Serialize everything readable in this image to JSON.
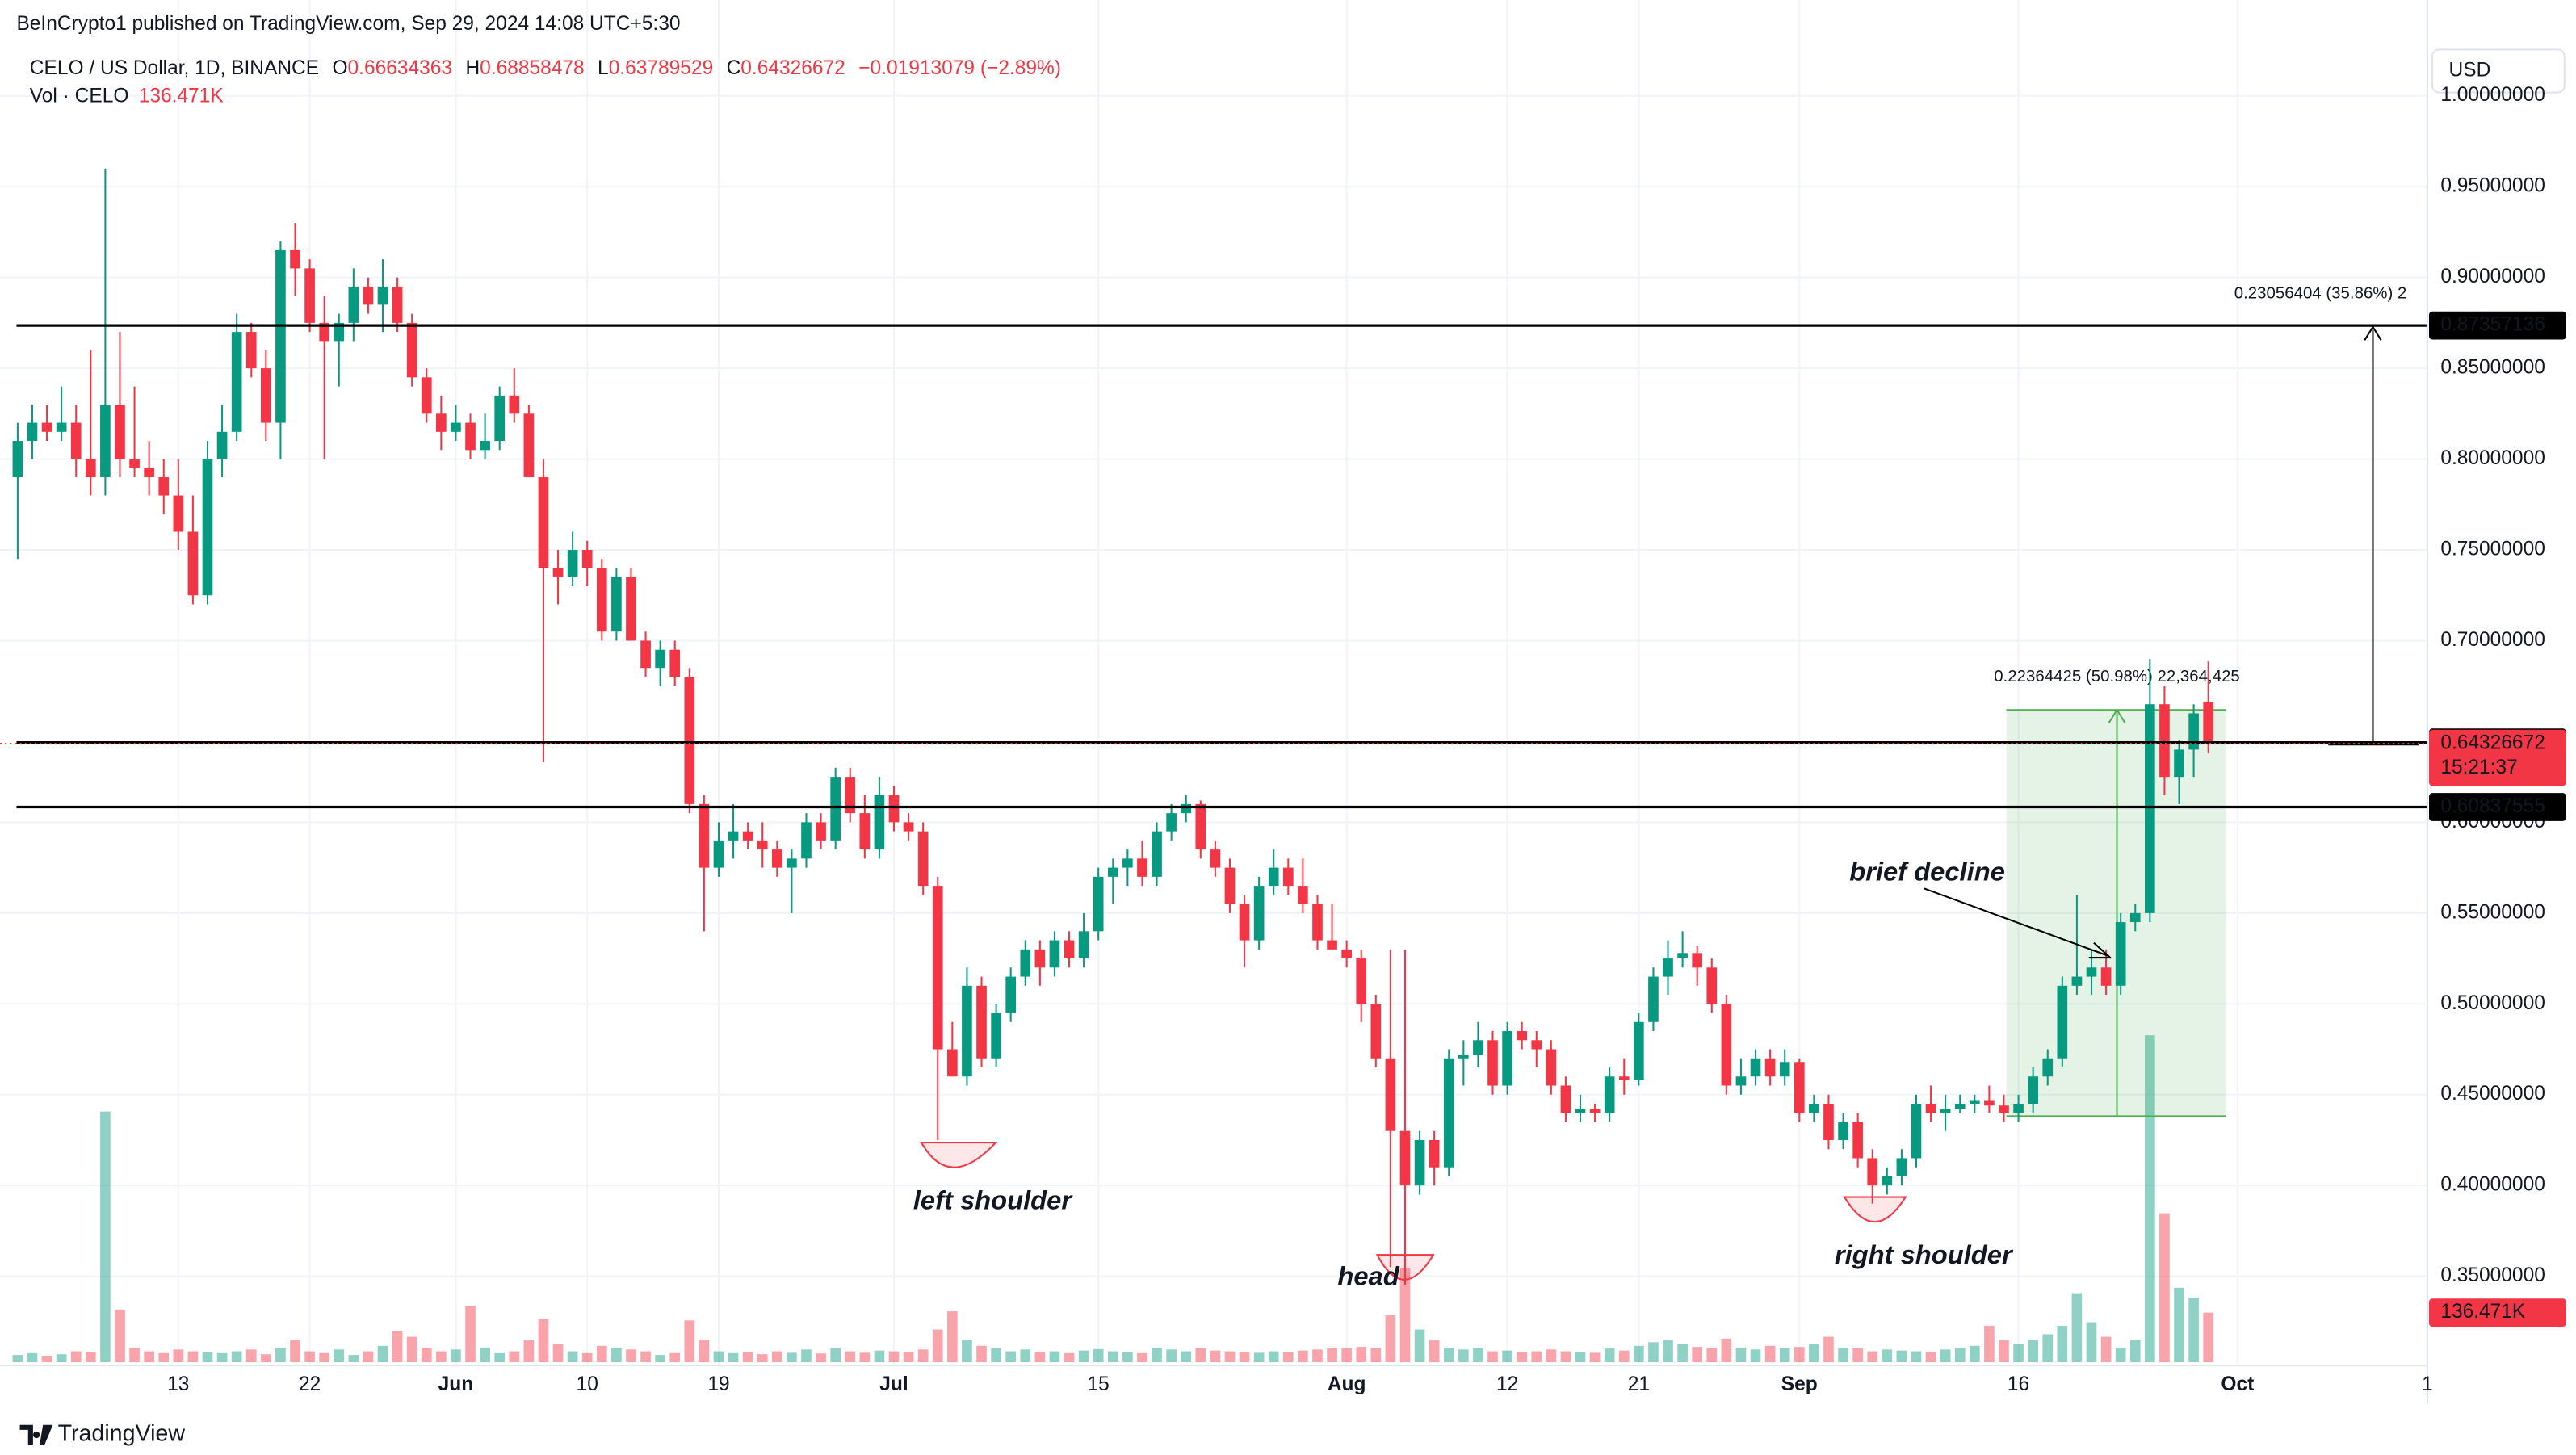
{
  "header": {
    "published": "BeInCrypto1 published on TradingView.com, Sep 29, 2024 14:08 UTC+5:30",
    "symbol": "CELO / US Dollar, 1D, BINANCE",
    "o": "O",
    "h": "H",
    "l": "L",
    "c": "C",
    "change": "−0.01913079 (−2.89%)",
    "vol": "Vol · CELO",
    "vol_value": "136.471K",
    "currency": "USD",
    "footer": "TradingView"
  },
  "chart_data": {
    "type": "candlestick",
    "ohlc": [
      [
        0.79,
        0.82,
        0.745,
        0.81
      ],
      [
        0.81,
        0.83,
        0.8,
        0.82
      ],
      [
        0.82,
        0.83,
        0.81,
        0.815
      ],
      [
        0.815,
        0.84,
        0.81,
        0.82
      ],
      [
        0.82,
        0.83,
        0.79,
        0.8
      ],
      [
        0.8,
        0.86,
        0.78,
        0.79
      ],
      [
        0.79,
        0.96,
        0.78,
        0.83
      ],
      [
        0.83,
        0.87,
        0.79,
        0.8
      ],
      [
        0.8,
        0.84,
        0.79,
        0.795
      ],
      [
        0.795,
        0.81,
        0.78,
        0.79
      ],
      [
        0.79,
        0.8,
        0.77,
        0.78
      ],
      [
        0.78,
        0.8,
        0.75,
        0.76
      ],
      [
        0.76,
        0.78,
        0.72,
        0.725
      ],
      [
        0.725,
        0.81,
        0.72,
        0.8
      ],
      [
        0.8,
        0.83,
        0.79,
        0.815
      ],
      [
        0.815,
        0.88,
        0.81,
        0.87
      ],
      [
        0.87,
        0.875,
        0.845,
        0.85
      ],
      [
        0.85,
        0.86,
        0.81,
        0.82
      ],
      [
        0.82,
        0.92,
        0.8,
        0.915
      ],
      [
        0.915,
        0.93,
        0.89,
        0.905
      ],
      [
        0.905,
        0.91,
        0.87,
        0.875
      ],
      [
        0.875,
        0.89,
        0.8,
        0.865
      ],
      [
        0.865,
        0.88,
        0.84,
        0.875
      ],
      [
        0.875,
        0.905,
        0.865,
        0.895
      ],
      [
        0.895,
        0.9,
        0.88,
        0.885
      ],
      [
        0.885,
        0.91,
        0.87,
        0.895
      ],
      [
        0.895,
        0.9,
        0.87,
        0.875
      ],
      [
        0.875,
        0.88,
        0.84,
        0.845
      ],
      [
        0.845,
        0.85,
        0.82,
        0.825
      ],
      [
        0.825,
        0.835,
        0.805,
        0.815
      ],
      [
        0.815,
        0.83,
        0.81,
        0.82
      ],
      [
        0.82,
        0.825,
        0.8,
        0.805
      ],
      [
        0.805,
        0.825,
        0.8,
        0.81
      ],
      [
        0.81,
        0.84,
        0.805,
        0.835
      ],
      [
        0.835,
        0.85,
        0.82,
        0.825
      ],
      [
        0.825,
        0.83,
        0.79,
        0.79
      ],
      [
        0.79,
        0.8,
        0.633,
        0.74
      ],
      [
        0.74,
        0.75,
        0.72,
        0.735
      ],
      [
        0.735,
        0.76,
        0.73,
        0.75
      ],
      [
        0.75,
        0.755,
        0.73,
        0.74
      ],
      [
        0.74,
        0.745,
        0.7,
        0.705
      ],
      [
        0.705,
        0.74,
        0.7,
        0.735
      ],
      [
        0.735,
        0.74,
        0.7,
        0.7
      ],
      [
        0.7,
        0.705,
        0.68,
        0.685
      ],
      [
        0.685,
        0.7,
        0.675,
        0.695
      ],
      [
        0.695,
        0.7,
        0.675,
        0.68
      ],
      [
        0.68,
        0.685,
        0.605,
        0.61
      ],
      [
        0.61,
        0.615,
        0.54,
        0.575
      ],
      [
        0.575,
        0.6,
        0.57,
        0.59
      ],
      [
        0.59,
        0.61,
        0.58,
        0.595
      ],
      [
        0.595,
        0.6,
        0.585,
        0.59
      ],
      [
        0.59,
        0.6,
        0.575,
        0.585
      ],
      [
        0.585,
        0.59,
        0.57,
        0.575
      ],
      [
        0.575,
        0.585,
        0.55,
        0.58
      ],
      [
        0.58,
        0.605,
        0.575,
        0.6
      ],
      [
        0.6,
        0.605,
        0.585,
        0.59
      ],
      [
        0.59,
        0.63,
        0.585,
        0.625
      ],
      [
        0.625,
        0.63,
        0.6,
        0.605
      ],
      [
        0.605,
        0.615,
        0.58,
        0.585
      ],
      [
        0.585,
        0.625,
        0.58,
        0.615
      ],
      [
        0.615,
        0.62,
        0.595,
        0.6
      ],
      [
        0.6,
        0.605,
        0.59,
        0.595
      ],
      [
        0.595,
        0.6,
        0.56,
        0.565
      ],
      [
        0.565,
        0.57,
        0.425,
        0.475
      ],
      [
        0.475,
        0.49,
        0.46,
        0.46
      ],
      [
        0.46,
        0.52,
        0.455,
        0.51
      ],
      [
        0.51,
        0.515,
        0.465,
        0.47
      ],
      [
        0.47,
        0.5,
        0.465,
        0.495
      ],
      [
        0.495,
        0.52,
        0.49,
        0.515
      ],
      [
        0.515,
        0.535,
        0.51,
        0.53
      ],
      [
        0.53,
        0.535,
        0.51,
        0.52
      ],
      [
        0.52,
        0.54,
        0.515,
        0.535
      ],
      [
        0.535,
        0.54,
        0.52,
        0.525
      ],
      [
        0.525,
        0.55,
        0.52,
        0.54
      ],
      [
        0.54,
        0.575,
        0.535,
        0.57
      ],
      [
        0.57,
        0.58,
        0.555,
        0.575
      ],
      [
        0.575,
        0.585,
        0.565,
        0.58
      ],
      [
        0.58,
        0.59,
        0.565,
        0.57
      ],
      [
        0.57,
        0.6,
        0.565,
        0.595
      ],
      [
        0.595,
        0.61,
        0.59,
        0.605
      ],
      [
        0.605,
        0.615,
        0.6,
        0.61
      ],
      [
        0.61,
        0.612,
        0.58,
        0.585
      ],
      [
        0.585,
        0.59,
        0.57,
        0.575
      ],
      [
        0.575,
        0.58,
        0.55,
        0.555
      ],
      [
        0.555,
        0.56,
        0.52,
        0.535
      ],
      [
        0.535,
        0.57,
        0.53,
        0.565
      ],
      [
        0.565,
        0.585,
        0.56,
        0.575
      ],
      [
        0.575,
        0.58,
        0.56,
        0.565
      ],
      [
        0.565,
        0.58,
        0.55,
        0.555
      ],
      [
        0.555,
        0.56,
        0.53,
        0.535
      ],
      [
        0.535,
        0.555,
        0.53,
        0.53
      ],
      [
        0.53,
        0.535,
        0.52,
        0.525
      ],
      [
        0.525,
        0.53,
        0.49,
        0.5
      ],
      [
        0.5,
        0.505,
        0.465,
        0.47
      ],
      [
        0.47,
        0.53,
        0.355,
        0.43
      ],
      [
        0.43,
        0.53,
        0.345,
        0.4
      ],
      [
        0.4,
        0.43,
        0.395,
        0.425
      ],
      [
        0.425,
        0.43,
        0.4,
        0.41
      ],
      [
        0.41,
        0.475,
        0.405,
        0.47
      ],
      [
        0.47,
        0.48,
        0.455,
        0.472
      ],
      [
        0.472,
        0.49,
        0.465,
        0.48
      ],
      [
        0.48,
        0.485,
        0.45,
        0.455
      ],
      [
        0.455,
        0.49,
        0.45,
        0.485
      ],
      [
        0.485,
        0.49,
        0.475,
        0.48
      ],
      [
        0.48,
        0.485,
        0.465,
        0.475
      ],
      [
        0.475,
        0.48,
        0.45,
        0.455
      ],
      [
        0.455,
        0.46,
        0.435,
        0.44
      ],
      [
        0.44,
        0.45,
        0.435,
        0.442
      ],
      [
        0.442,
        0.445,
        0.435,
        0.44
      ],
      [
        0.44,
        0.465,
        0.435,
        0.46
      ],
      [
        0.46,
        0.47,
        0.45,
        0.458
      ],
      [
        0.458,
        0.495,
        0.455,
        0.49
      ],
      [
        0.49,
        0.52,
        0.485,
        0.515
      ],
      [
        0.515,
        0.535,
        0.505,
        0.525
      ],
      [
        0.525,
        0.54,
        0.52,
        0.528
      ],
      [
        0.528,
        0.532,
        0.51,
        0.52
      ],
      [
        0.52,
        0.525,
        0.495,
        0.5
      ],
      [
        0.5,
        0.505,
        0.45,
        0.455
      ],
      [
        0.455,
        0.47,
        0.45,
        0.46
      ],
      [
        0.46,
        0.475,
        0.455,
        0.47
      ],
      [
        0.47,
        0.475,
        0.455,
        0.46
      ],
      [
        0.46,
        0.475,
        0.455,
        0.468
      ],
      [
        0.468,
        0.47,
        0.435,
        0.44
      ],
      [
        0.44,
        0.45,
        0.435,
        0.445
      ],
      [
        0.445,
        0.45,
        0.42,
        0.425
      ],
      [
        0.425,
        0.44,
        0.42,
        0.435
      ],
      [
        0.435,
        0.44,
        0.41,
        0.415
      ],
      [
        0.415,
        0.42,
        0.39,
        0.4
      ],
      [
        0.4,
        0.41,
        0.395,
        0.405
      ],
      [
        0.405,
        0.42,
        0.4,
        0.415
      ],
      [
        0.415,
        0.45,
        0.41,
        0.445
      ],
      [
        0.445,
        0.455,
        0.435,
        0.44
      ],
      [
        0.44,
        0.45,
        0.43,
        0.442
      ],
      [
        0.442,
        0.45,
        0.44,
        0.445
      ],
      [
        0.445,
        0.45,
        0.44,
        0.447
      ],
      [
        0.447,
        0.455,
        0.44,
        0.444
      ],
      [
        0.444,
        0.45,
        0.435,
        0.44
      ],
      [
        0.44,
        0.45,
        0.435,
        0.445
      ],
      [
        0.445,
        0.465,
        0.44,
        0.46
      ],
      [
        0.46,
        0.475,
        0.455,
        0.47
      ],
      [
        0.47,
        0.515,
        0.465,
        0.51
      ],
      [
        0.51,
        0.56,
        0.505,
        0.515
      ],
      [
        0.515,
        0.53,
        0.505,
        0.52
      ],
      [
        0.52,
        0.53,
        0.505,
        0.51
      ],
      [
        0.51,
        0.55,
        0.505,
        0.545
      ],
      [
        0.545,
        0.555,
        0.54,
        0.55
      ],
      [
        0.55,
        0.69,
        0.545,
        0.665
      ],
      [
        0.665,
        0.675,
        0.615,
        0.625
      ],
      [
        0.625,
        0.645,
        0.61,
        0.64
      ],
      [
        0.64,
        0.665,
        0.625,
        0.66
      ],
      [
        0.66634363,
        0.68858478,
        0.63789529,
        0.64326672
      ]
    ],
    "volume": [
      20,
      25,
      18,
      22,
      30,
      28,
      690,
      145,
      40,
      30,
      25,
      35,
      30,
      28,
      25,
      30,
      35,
      22,
      40,
      60,
      30,
      25,
      35,
      20,
      30,
      45,
      85,
      70,
      40,
      30,
      35,
      155,
      40,
      25,
      30,
      60,
      120,
      50,
      30,
      25,
      45,
      40,
      35,
      30,
      20,
      25,
      115,
      60,
      30,
      25,
      28,
      22,
      30,
      26,
      35,
      24,
      40,
      30,
      26,
      32,
      30,
      28,
      35,
      90,
      140,
      60,
      45,
      38,
      30,
      35,
      28,
      30,
      25,
      32,
      36,
      30,
      28,
      25,
      40,
      35,
      30,
      38,
      32,
      30,
      28,
      26,
      30,
      28,
      32,
      35,
      40,
      38,
      42,
      40,
      130,
      260,
      90,
      60,
      40,
      35,
      38,
      30,
      32,
      28,
      30,
      35,
      30,
      28,
      26,
      40,
      32,
      45,
      55,
      60,
      50,
      42,
      38,
      65,
      40,
      35,
      45,
      38,
      42,
      50,
      70,
      40,
      38,
      30,
      35,
      32,
      30,
      28,
      35,
      40,
      45,
      100,
      60,
      50,
      60,
      77,
      100,
      190,
      110,
      70,
      40,
      60,
      900,
      410,
      205,
      177,
      136.471
    ],
    "up_color": "#089981",
    "down_color": "#f23645",
    "xlim": [
      -1.21,
      165.0
    ],
    "ylim": [
      0.3027,
      1.0255
    ],
    "vlim": [
      0,
      1000
    ],
    "xticks": [
      {
        "value": 11,
        "label": "13"
      },
      {
        "value": 20,
        "label": "22"
      },
      {
        "value": 30,
        "label": "Jun"
      },
      {
        "value": 39,
        "label": "10"
      },
      {
        "value": 48,
        "label": "19"
      },
      {
        "value": 60,
        "label": "Jul"
      },
      {
        "value": 74,
        "label": "15"
      },
      {
        "value": 91,
        "label": "Aug"
      },
      {
        "value": 102,
        "label": "12"
      },
      {
        "value": 111,
        "label": "21"
      },
      {
        "value": 122,
        "label": "Sep"
      },
      {
        "value": 137,
        "label": "16"
      },
      {
        "value": 152,
        "label": "Oct"
      },
      {
        "value": 165,
        "label": "1"
      }
    ],
    "yticks": [
      {
        "value": 1.0,
        "label": "1.00000000"
      },
      {
        "value": 0.95,
        "label": "0.95000000"
      },
      {
        "value": 0.9,
        "label": "0.90000000"
      },
      {
        "value": 0.85,
        "label": "0.85000000"
      },
      {
        "value": 0.8,
        "label": "0.80000000"
      },
      {
        "value": 0.75,
        "label": "0.75000000"
      },
      {
        "value": 0.7,
        "label": "0.70000000"
      },
      {
        "value": 0.6,
        "label": "0.60000000"
      },
      {
        "value": 0.55,
        "label": "0.55000000"
      },
      {
        "value": 0.5,
        "label": "0.50000000"
      },
      {
        "value": 0.45,
        "label": "0.45000000"
      },
      {
        "value": 0.4,
        "label": "0.40000000"
      },
      {
        "value": 0.35,
        "label": "0.35000000"
      }
    ],
    "grid": true,
    "levels": [
      0.87357136,
      0.64390098,
      0.60837555
    ],
    "countdown": "15:21:37",
    "measures": [
      "0.22364425 (50.98%) 22,364,425",
      "0.23056404 (35.86%) 2"
    ],
    "annotations": [
      "left shoulder",
      "head",
      "right shoulder",
      "brief decline"
    ]
  }
}
